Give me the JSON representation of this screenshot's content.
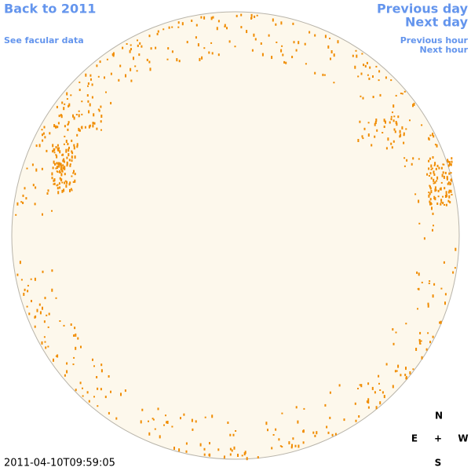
{
  "links": {
    "back": "Back to 2011",
    "facular": "See facular data",
    "previous_day": "Previous day",
    "next_day": "Next day",
    "previous_hour": "Previous hour",
    "next_hour": "Next hour"
  },
  "timestamp": "2011-04-10T09:59:05",
  "compass": {
    "north": "N",
    "east": "E",
    "center": "+",
    "west": "W",
    "south": "S"
  }
}
